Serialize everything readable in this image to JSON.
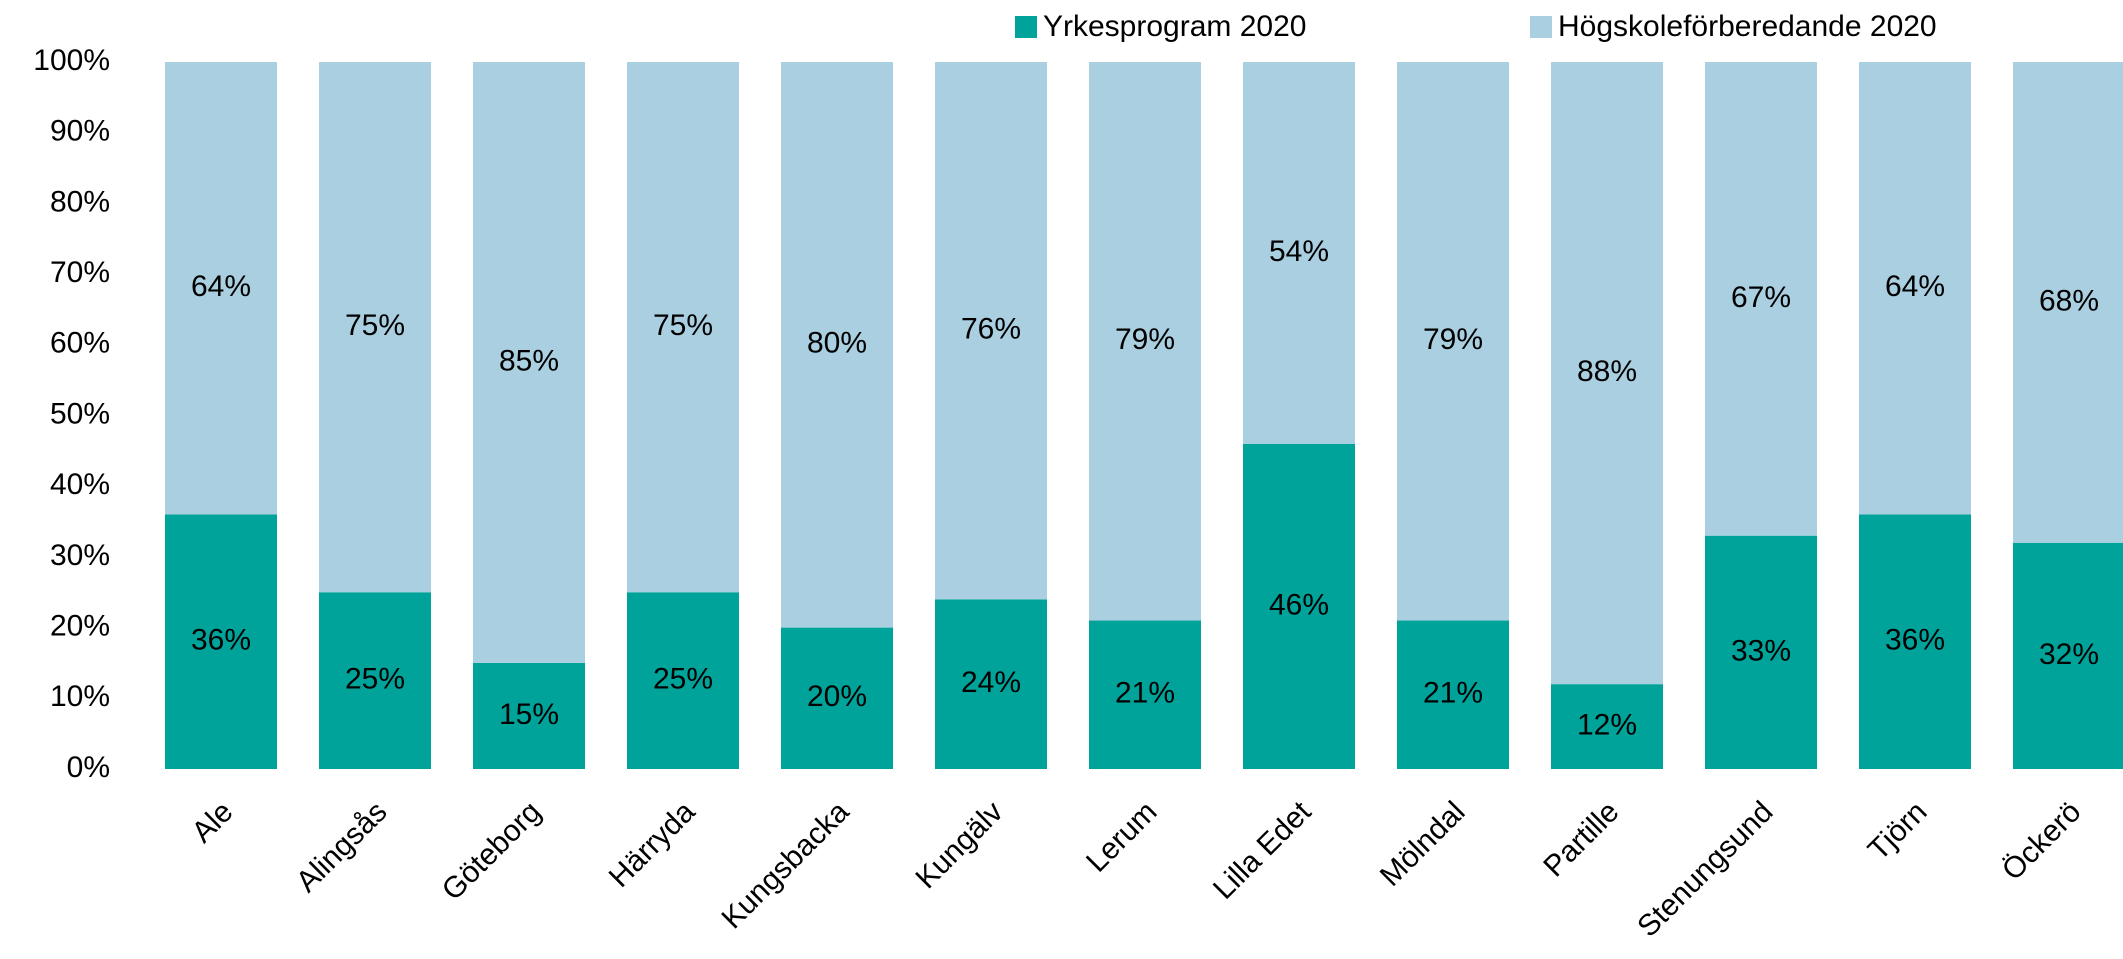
{
  "chart_data": {
    "type": "stacked_bar",
    "categories": [
      "Ale",
      "Alingsås",
      "Göteborg",
      "Härryda",
      "Kungsbacka",
      "Kungälv",
      "Lerum",
      "Lilla Edet",
      "Mölndal",
      "Partille",
      "Stenungsund",
      "Tjörn",
      "Öckerö"
    ],
    "series": [
      {
        "name": "Yrkesprogram 2020",
        "color": "#00a39a",
        "values": [
          36,
          25,
          15,
          25,
          20,
          24,
          21,
          46,
          21,
          12,
          33,
          36,
          32
        ],
        "value_labels": [
          "36%",
          "25%",
          "15%",
          "25%",
          "20%",
          "24%",
          "21%",
          "46%",
          "21%",
          "12%",
          "33%",
          "36%",
          "32%"
        ]
      },
      {
        "name": "Högskoleförberedande 2020",
        "color": "#a9cfe0",
        "values": [
          64,
          75,
          85,
          75,
          80,
          76,
          79,
          54,
          79,
          88,
          67,
          64,
          68
        ],
        "value_labels": [
          "64%",
          "75%",
          "85%",
          "75%",
          "80%",
          "76%",
          "79%",
          "54%",
          "79%",
          "88%",
          "67%",
          "64%",
          "68%"
        ]
      }
    ],
    "ylim": [
      0,
      100
    ],
    "yticks": [
      {
        "value": 0,
        "label": "0%"
      },
      {
        "value": 10,
        "label": "10%"
      },
      {
        "value": 20,
        "label": "20%"
      },
      {
        "value": 30,
        "label": "30%"
      },
      {
        "value": 40,
        "label": "40%"
      },
      {
        "value": 50,
        "label": "50%"
      },
      {
        "value": 60,
        "label": "60%"
      },
      {
        "value": 70,
        "label": "70%"
      },
      {
        "value": 80,
        "label": "80%"
      },
      {
        "value": 90,
        "label": "90%"
      },
      {
        "value": 100,
        "label": "100%"
      }
    ],
    "legend": "top",
    "grid": false
  }
}
